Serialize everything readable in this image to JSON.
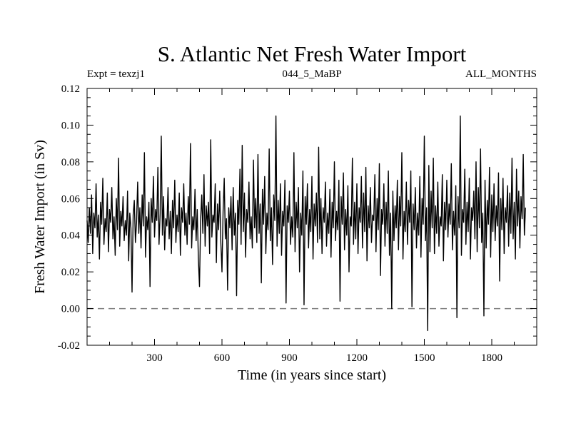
{
  "chart_data": {
    "type": "line",
    "title": "S. Atlantic Net Fresh Water Import",
    "subtitle_left": "Expt = texzj1",
    "subtitle_center": "044_5_MaBP",
    "subtitle_right": "ALL_MONTHS",
    "xlabel": "Time (in years since start)",
    "ylabel": "Fresh Water Import (in Sv)",
    "xlim": [
      0,
      2000
    ],
    "ylim": [
      -0.02,
      0.12
    ],
    "x_ticks": [
      300,
      600,
      900,
      1200,
      1500,
      1800
    ],
    "x_tick_labels": [
      "300",
      "600",
      "900",
      "1200",
      "1500",
      "1800"
    ],
    "y_ticks": [
      -0.02,
      0.0,
      0.02,
      0.04,
      0.06,
      0.08,
      0.1,
      0.12
    ],
    "y_tick_labels": [
      "-0.02",
      "0.00",
      "0.02",
      "0.04",
      "0.06",
      "0.08",
      "0.10",
      "0.12"
    ],
    "reference_line": {
      "y": 0.0,
      "style": "dashed",
      "color": "#7f7f7f"
    },
    "series": [
      {
        "name": "Net fresh water import",
        "color": "#000000",
        "x_start": 0,
        "x_step": 5,
        "values": [
          0.048,
          0.036,
          0.055,
          0.041,
          0.062,
          0.03,
          0.052,
          0.044,
          0.068,
          0.039,
          0.051,
          0.027,
          0.058,
          0.046,
          0.071,
          0.035,
          0.049,
          0.042,
          0.063,
          0.031,
          0.054,
          0.047,
          0.066,
          0.038,
          0.05,
          0.029,
          0.06,
          0.043,
          0.082,
          0.034,
          0.053,
          0.045,
          0.061,
          0.037,
          0.048,
          0.04,
          0.064,
          0.026,
          0.052,
          0.044,
          0.009,
          0.051,
          0.059,
          0.036,
          0.047,
          0.069,
          0.041,
          0.055,
          0.033,
          0.062,
          0.045,
          0.085,
          0.028,
          0.05,
          0.043,
          0.058,
          0.012,
          0.06,
          0.047,
          0.072,
          0.039,
          0.054,
          0.048,
          0.077,
          0.035,
          0.052,
          0.094,
          0.04,
          0.061,
          0.032,
          0.049,
          0.045,
          0.066,
          0.038,
          0.053,
          0.03,
          0.059,
          0.044,
          0.07,
          0.036,
          0.051,
          0.042,
          0.063,
          0.029,
          0.055,
          0.047,
          0.068,
          0.04,
          0.052,
          0.035,
          0.061,
          0.046,
          0.09,
          0.033,
          0.05,
          0.043,
          0.065,
          0.037,
          0.054,
          0.027,
          0.012,
          0.048,
          0.062,
          0.041,
          0.073,
          0.034,
          0.056,
          0.045,
          0.058,
          0.03,
          0.092,
          0.039,
          0.051,
          0.047,
          0.068,
          0.025,
          0.057,
          0.043,
          0.064,
          0.036,
          0.02,
          0.053,
          0.071,
          0.038,
          0.049,
          0.01,
          0.055,
          0.044,
          0.061,
          0.032,
          0.066,
          0.04,
          0.052,
          0.007,
          0.059,
          0.046,
          0.076,
          0.035,
          0.089,
          0.042,
          0.063,
          0.028,
          0.054,
          0.047,
          0.069,
          0.038,
          0.05,
          0.033,
          0.081,
          0.044,
          0.06,
          0.036,
          0.084,
          0.041,
          0.057,
          0.014,
          0.065,
          0.046,
          0.072,
          0.03,
          0.052,
          0.043,
          0.087,
          0.037,
          0.055,
          0.024,
          0.062,
          0.048,
          0.105,
          0.034,
          0.059,
          0.041,
          0.068,
          0.029,
          0.053,
          0.045,
          0.07,
          0.003,
          0.056,
          0.047,
          0.064,
          0.035,
          0.05,
          0.039,
          0.085,
          0.031,
          0.058,
          0.044,
          0.066,
          0.02,
          0.052,
          0.04,
          0.075,
          0.002,
          0.061,
          0.046,
          0.068,
          0.033,
          0.054,
          0.042,
          0.072,
          0.027,
          0.057,
          0.045,
          0.063,
          0.036,
          0.088,
          0.038,
          0.06,
          0.03,
          0.055,
          0.047,
          0.069,
          0.034,
          0.052,
          0.041,
          0.065,
          0.028,
          0.058,
          0.044,
          0.08,
          0.037,
          0.053,
          0.043,
          0.07,
          0.004,
          0.061,
          0.046,
          0.074,
          0.032,
          0.054,
          0.04,
          0.067,
          0.02,
          0.05,
          0.045,
          0.082,
          0.035,
          0.058,
          0.038,
          0.068,
          0.03,
          0.055,
          0.047,
          0.072,
          0.033,
          0.063,
          0.042,
          0.077,
          0.026,
          0.056,
          0.044,
          0.066,
          0.036,
          0.051,
          0.048,
          0.073,
          0.031,
          0.06,
          0.043,
          0.079,
          0.018,
          0.054,
          0.046,
          0.068,
          0.034,
          0.058,
          0.041,
          0.075,
          0.029,
          0.052,
          0.0,
          0.064,
          0.037,
          0.056,
          0.044,
          0.07,
          0.032,
          0.061,
          0.045,
          0.085,
          0.027,
          0.053,
          0.042,
          0.069,
          0.035,
          0.059,
          0.047,
          0.075,
          0.001,
          0.057,
          0.043,
          0.066,
          0.033,
          0.052,
          0.04,
          0.072,
          0.028,
          0.06,
          0.046,
          0.094,
          0.037,
          0.055,
          -0.012,
          0.078,
          0.031,
          0.064,
          0.044,
          0.082,
          0.03,
          0.056,
          0.041,
          0.069,
          0.034,
          0.05,
          0.045,
          0.073,
          0.026,
          0.058,
          0.043,
          0.07,
          0.039,
          0.057,
          0.046,
          0.079,
          0.032,
          0.053,
          0.04,
          0.067,
          -0.005,
          0.061,
          0.044,
          0.105,
          0.029,
          0.054,
          0.047,
          0.076,
          0.035,
          0.058,
          0.042,
          0.071,
          0.027,
          0.055,
          0.048,
          0.064,
          0.038,
          0.08,
          0.031,
          0.066,
          0.044,
          0.087,
          0.036,
          0.052,
          -0.004,
          0.07,
          0.033,
          0.059,
          0.046,
          0.077,
          0.028,
          0.062,
          0.042,
          0.068,
          0.037,
          0.056,
          0.045,
          0.074,
          0.015,
          0.06,
          0.043,
          0.071,
          0.03,
          0.055,
          0.047,
          0.067,
          0.034,
          0.063,
          0.041,
          0.082,
          0.038,
          0.058,
          0.027,
          0.076,
          0.045,
          0.064,
          0.033,
          0.061,
          0.049,
          0.084,
          0.04,
          0.055
        ]
      }
    ]
  }
}
